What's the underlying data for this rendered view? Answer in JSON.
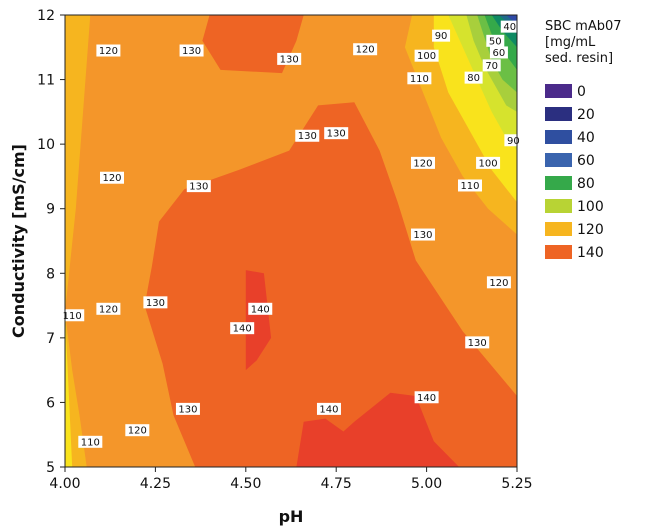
{
  "chart_data": {
    "type": "contour",
    "xlabel": "pH",
    "ylabel": "Conductivity [mS/cm]",
    "xlim": [
      4.0,
      5.25
    ],
    "ylim": [
      5,
      12
    ],
    "x_ticks": [
      "4.00",
      "4.25",
      "4.50",
      "4.75",
      "5.00",
      "5.25"
    ],
    "y_ticks": [
      "5",
      "6",
      "7",
      "8",
      "9",
      "10",
      "11",
      "12"
    ],
    "legend": {
      "title_lines": [
        "SBC mAb07",
        "[mg/mL",
        "sed. resin]"
      ],
      "placement": "right",
      "entries": [
        {
          "label": "0",
          "color": "#4b2a8a"
        },
        {
          "label": "20",
          "color": "#2b2f80"
        },
        {
          "label": "40",
          "color": "#2f4fa0"
        },
        {
          "label": "60",
          "color": "#3a64ae"
        },
        {
          "label": "80",
          "color": "#35a94a"
        },
        {
          "label": "100",
          "color": "#b8d334"
        },
        {
          "label": "120",
          "color": "#f6b51f"
        },
        {
          "label": "140",
          "color": "#ee6424"
        }
      ]
    },
    "colors": {
      "c_ge140": "#e8402a",
      "c_130_140": "#ee6424",
      "c_120_130": "#f4962a",
      "c_110_120": "#f6b51f",
      "c_100_110": "#f9e31c",
      "c_90_100": "#d6e32d",
      "c_80_90": "#a8cf3c",
      "c_70_80": "#6bbf45",
      "c_60_70": "#35a94a",
      "c_50_60": "#0f8a63",
      "c_40_50": "#1f6a8a",
      "c_lt40": "#2e4aa6"
    },
    "regions": [
      {
        "level": "120-130",
        "points": [
          [
            4.06,
            5
          ],
          [
            4.11,
            6
          ],
          [
            4.13,
            7
          ],
          [
            4.14,
            8
          ],
          [
            4.13,
            9
          ],
          [
            4.11,
            10
          ],
          [
            4.09,
            11
          ],
          [
            4.07,
            12
          ],
          [
            5.0,
            12
          ],
          [
            5.03,
            11
          ],
          [
            5.1,
            10
          ],
          [
            5.15,
            9
          ],
          [
            5.2,
            8.2
          ],
          [
            5.25,
            7.5
          ],
          [
            5.25,
            5
          ]
        ]
      },
      {
        "level": "110-120",
        "points": [
          [
            4.0,
            7.4
          ],
          [
            4.02,
            6.5
          ],
          [
            4.04,
            5.8
          ],
          [
            4.06,
            5
          ],
          [
            4.0,
            5
          ]
        ]
      },
      {
        "level": "110-120",
        "points": [
          [
            4.0,
            7.4
          ],
          [
            4.03,
            9
          ],
          [
            4.07,
            12
          ],
          [
            4.0,
            12
          ]
        ]
      },
      {
        "level": "100-110",
        "points": [
          [
            4.0,
            7.4
          ],
          [
            4.0,
            5
          ],
          [
            4.02,
            5
          ],
          [
            4.01,
            6.2
          ]
        ]
      },
      {
        "level": "130-140",
        "points": [
          [
            4.36,
            5
          ],
          [
            4.3,
            5.8
          ],
          [
            4.27,
            6.6
          ],
          [
            4.22,
            7.5
          ],
          [
            4.24,
            8.1
          ],
          [
            4.26,
            8.8
          ],
          [
            4.33,
            9.3
          ],
          [
            4.48,
            9.6
          ],
          [
            4.62,
            9.9
          ],
          [
            4.7,
            10.6
          ],
          [
            4.8,
            10.65
          ],
          [
            4.87,
            9.9
          ],
          [
            4.92,
            9.1
          ],
          [
            4.97,
            8.2
          ],
          [
            5.1,
            7.1
          ],
          [
            5.25,
            6.1
          ],
          [
            5.25,
            5
          ]
        ]
      },
      {
        "level": "130-140",
        "points": [
          [
            4.4,
            12
          ],
          [
            4.38,
            11.6
          ],
          [
            4.43,
            11.15
          ],
          [
            4.6,
            11.1
          ],
          [
            4.64,
            11.6
          ],
          [
            4.66,
            12
          ]
        ]
      },
      {
        "level": "140+",
        "points": [
          [
            4.64,
            5
          ],
          [
            4.66,
            5.7
          ],
          [
            4.72,
            5.75
          ],
          [
            4.77,
            5.55
          ],
          [
            4.8,
            5.7
          ],
          [
            4.9,
            6.15
          ],
          [
            4.97,
            6.1
          ],
          [
            5.02,
            5.4
          ],
          [
            5.09,
            5
          ]
        ]
      },
      {
        "level": "140+",
        "points": [
          [
            4.5,
            8.05
          ],
          [
            4.55,
            8.0
          ],
          [
            4.57,
            7.0
          ],
          [
            4.53,
            6.65
          ],
          [
            4.5,
            6.5
          ],
          [
            4.5,
            7.2
          ]
        ]
      },
      {
        "level": "110-120",
        "points": [
          [
            4.96,
            12
          ],
          [
            4.94,
            11.5
          ],
          [
            4.99,
            10.8
          ],
          [
            5.04,
            10.1
          ],
          [
            5.1,
            9.5
          ],
          [
            5.17,
            9.0
          ],
          [
            5.25,
            8.6
          ],
          [
            5.25,
            12
          ]
        ]
      },
      {
        "level": "100-110",
        "points": [
          [
            5.02,
            12
          ],
          [
            5.02,
            11.5
          ],
          [
            5.06,
            10.8
          ],
          [
            5.12,
            10.2
          ],
          [
            5.18,
            9.6
          ],
          [
            5.25,
            9.1
          ],
          [
            5.25,
            12
          ]
        ]
      },
      {
        "level": "90-100",
        "points": [
          [
            5.06,
            12
          ],
          [
            5.1,
            11.5
          ],
          [
            5.14,
            11.0
          ],
          [
            5.18,
            10.5
          ],
          [
            5.22,
            10.1
          ],
          [
            5.25,
            9.9
          ],
          [
            5.25,
            12
          ]
        ]
      },
      {
        "level": "80-90",
        "points": [
          [
            5.11,
            12
          ],
          [
            5.13,
            11.6
          ],
          [
            5.16,
            11.2
          ],
          [
            5.19,
            10.9
          ],
          [
            5.22,
            10.6
          ],
          [
            5.25,
            10.5
          ],
          [
            5.25,
            12
          ]
        ]
      },
      {
        "level": "70-80",
        "points": [
          [
            5.14,
            12
          ],
          [
            5.16,
            11.65
          ],
          [
            5.18,
            11.3
          ],
          [
            5.21,
            11.0
          ],
          [
            5.25,
            10.8
          ],
          [
            5.25,
            12
          ]
        ]
      },
      {
        "level": "60-70",
        "points": [
          [
            5.16,
            12
          ],
          [
            5.18,
            11.7
          ],
          [
            5.21,
            11.45
          ],
          [
            5.25,
            11.15
          ],
          [
            5.25,
            12
          ]
        ]
      },
      {
        "level": "50-60",
        "points": [
          [
            5.18,
            12
          ],
          [
            5.21,
            11.75
          ],
          [
            5.25,
            11.5
          ],
          [
            5.25,
            12
          ]
        ]
      },
      {
        "level": "40-50",
        "points": [
          [
            5.2,
            12
          ],
          [
            5.23,
            11.85
          ],
          [
            5.25,
            11.7
          ],
          [
            5.25,
            12
          ]
        ]
      },
      {
        "level": "<40",
        "points": [
          [
            5.22,
            12
          ],
          [
            5.25,
            11.85
          ],
          [
            5.25,
            12
          ]
        ]
      }
    ],
    "contour_labels": [
      {
        "text": "120",
        "x": 4.12,
        "y": 11.45
      },
      {
        "text": "130",
        "x": 4.35,
        "y": 11.45
      },
      {
        "text": "130",
        "x": 4.62,
        "y": 11.32
      },
      {
        "text": "120",
        "x": 4.83,
        "y": 11.47
      },
      {
        "text": "90",
        "x": 5.04,
        "y": 11.68
      },
      {
        "text": "40",
        "x": 5.23,
        "y": 11.82
      },
      {
        "text": "50",
        "x": 5.19,
        "y": 11.6
      },
      {
        "text": "60",
        "x": 5.2,
        "y": 11.42
      },
      {
        "text": "100",
        "x": 5.0,
        "y": 11.37
      },
      {
        "text": "70",
        "x": 5.18,
        "y": 11.22
      },
      {
        "text": "80",
        "x": 5.13,
        "y": 11.03
      },
      {
        "text": "110",
        "x": 4.98,
        "y": 11.02
      },
      {
        "text": "130",
        "x": 4.67,
        "y": 10.13
      },
      {
        "text": "130",
        "x": 4.75,
        "y": 10.17
      },
      {
        "text": "90",
        "x": 5.24,
        "y": 10.06
      },
      {
        "text": "120",
        "x": 4.99,
        "y": 9.71
      },
      {
        "text": "100",
        "x": 5.17,
        "y": 9.71
      },
      {
        "text": "120",
        "x": 4.13,
        "y": 9.48
      },
      {
        "text": "130",
        "x": 4.37,
        "y": 9.35
      },
      {
        "text": "110",
        "x": 5.12,
        "y": 9.36
      },
      {
        "text": "130",
        "x": 4.99,
        "y": 8.6
      },
      {
        "text": "120",
        "x": 5.2,
        "y": 7.86
      },
      {
        "text": "130",
        "x": 4.25,
        "y": 7.55
      },
      {
        "text": "120",
        "x": 4.12,
        "y": 7.45
      },
      {
        "text": "140",
        "x": 4.54,
        "y": 7.45
      },
      {
        "text": "110",
        "x": 4.02,
        "y": 7.35
      },
      {
        "text": "140",
        "x": 4.49,
        "y": 7.15
      },
      {
        "text": "130",
        "x": 5.14,
        "y": 6.93
      },
      {
        "text": "140",
        "x": 5.0,
        "y": 6.08
      },
      {
        "text": "130",
        "x": 4.34,
        "y": 5.9
      },
      {
        "text": "140",
        "x": 4.73,
        "y": 5.9
      },
      {
        "text": "120",
        "x": 4.2,
        "y": 5.57
      },
      {
        "text": "110",
        "x": 4.07,
        "y": 5.39
      }
    ]
  }
}
